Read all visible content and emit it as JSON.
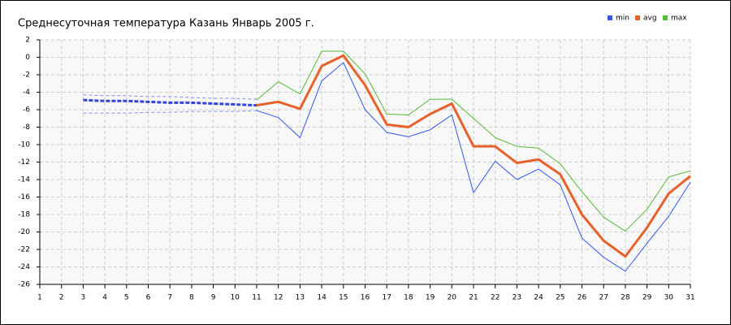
{
  "chart_data": {
    "type": "line",
    "title": "Среднесуточная температура Казань  Январь 2005 г.",
    "x": [
      1,
      2,
      3,
      4,
      5,
      6,
      7,
      8,
      9,
      10,
      11,
      12,
      13,
      14,
      15,
      16,
      17,
      18,
      19,
      20,
      21,
      22,
      23,
      24,
      25,
      26,
      27,
      28,
      29,
      30,
      31
    ],
    "xlim": [
      1,
      31
    ],
    "xticks": [
      1,
      2,
      3,
      4,
      5,
      6,
      7,
      8,
      9,
      10,
      11,
      12,
      13,
      14,
      15,
      16,
      17,
      18,
      19,
      20,
      21,
      22,
      23,
      24,
      25,
      26,
      27,
      28,
      29,
      30,
      31
    ],
    "ylim": [
      -26,
      2
    ],
    "yticks": [
      2,
      0,
      -2,
      -4,
      -6,
      -8,
      -10,
      -12,
      -14,
      -16,
      -18,
      -20,
      -22,
      -24,
      -26
    ],
    "grid": true,
    "legend": "top-right",
    "series": [
      {
        "color": "#7e8ef0",
        "dashed": true,
        "width": 1,
        "values": [
          null,
          null,
          -4.3,
          -4.4,
          -4.4,
          -4.5,
          -4.5,
          -4.6,
          -4.7,
          -4.7,
          -4.8,
          null,
          null,
          null,
          null,
          null,
          null,
          null,
          null,
          null,
          null,
          null,
          null,
          null,
          null,
          null,
          null,
          null,
          null,
          null,
          null
        ]
      },
      {
        "color": "#7e8ef0",
        "dashed": true,
        "width": 1,
        "values": [
          null,
          null,
          -6.4,
          -6.4,
          -6.4,
          -6.3,
          -6.3,
          -6.2,
          -6.2,
          -6.2,
          -6.1,
          null,
          null,
          null,
          null,
          null,
          null,
          null,
          null,
          null,
          null,
          null,
          null,
          null,
          null,
          null,
          null,
          null,
          null,
          null,
          null
        ]
      },
      {
        "color": "#3344e0",
        "dashed": true,
        "width": 3,
        "values": [
          null,
          null,
          -4.9,
          -5.0,
          -5.0,
          -5.1,
          -5.2,
          -5.2,
          -5.3,
          -5.4,
          -5.5,
          null,
          null,
          null,
          null,
          null,
          null,
          null,
          null,
          null,
          null,
          null,
          null,
          null,
          null,
          null,
          null,
          null,
          null,
          null,
          null
        ]
      },
      {
        "name": "min",
        "color": "#3355ee",
        "dashed": false,
        "width": 1,
        "values": [
          null,
          null,
          null,
          null,
          null,
          null,
          null,
          null,
          null,
          null,
          -6.1,
          -6.9,
          -9.2,
          -2.7,
          -0.6,
          -6.0,
          -8.6,
          -9.1,
          -8.3,
          -6.6,
          -15.5,
          -11.9,
          -14.0,
          -12.8,
          -14.6,
          -20.7,
          -22.9,
          -24.5,
          -21.3,
          -18.2,
          -14.3
        ]
      },
      {
        "name": "avg",
        "color": "#e8602a",
        "dashed": false,
        "width": 3,
        "values": [
          null,
          null,
          null,
          null,
          null,
          null,
          null,
          null,
          null,
          null,
          -5.5,
          -5.1,
          -5.9,
          -1.0,
          0.2,
          -3.2,
          -7.7,
          -8.0,
          -6.5,
          -5.3,
          -10.2,
          -10.2,
          -12.1,
          -11.7,
          -13.4,
          -18.0,
          -21.0,
          -22.8,
          -19.5,
          -15.6,
          -13.6
        ]
      },
      {
        "name": "max",
        "color": "#55bb33",
        "dashed": false,
        "width": 1,
        "values": [
          null,
          null,
          null,
          null,
          null,
          null,
          null,
          null,
          null,
          null,
          -4.9,
          -2.8,
          -4.2,
          0.7,
          0.7,
          -1.9,
          -6.5,
          -6.6,
          -4.8,
          -4.8,
          -7.0,
          -9.2,
          -10.2,
          -10.4,
          -12.2,
          -15.4,
          -18.3,
          -19.9,
          -17.4,
          -13.7,
          -13.0
        ]
      }
    ]
  }
}
